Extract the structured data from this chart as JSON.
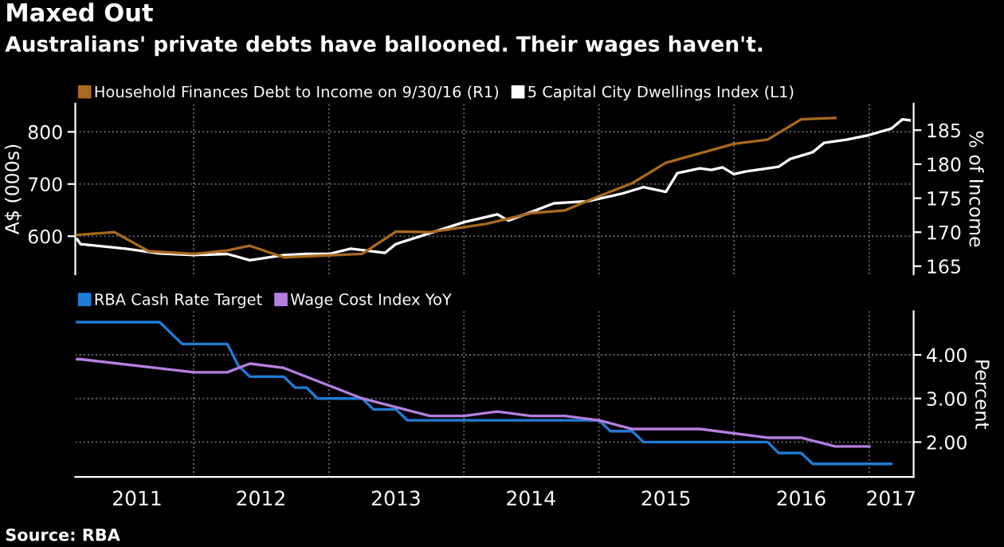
{
  "chart_data": [
    {
      "type": "line",
      "title": "Maxed Out",
      "subtitle": "Australians' private debts have ballooned. Their wages haven't.",
      "ylabel": "A$ (000s)",
      "y2label": "% of Income",
      "legend": "top left",
      "grid": true,
      "tick_labels": "y",
      "marker": "none",
      "line_style": "solid",
      "xlim": [
        "2011-02-15",
        "2017-05-01"
      ],
      "xticks": [
        {
          "value": "2012-01-01",
          "label": null
        },
        {
          "value": "2013-01-01",
          "label": null
        },
        {
          "value": "2014-01-01",
          "label": null
        },
        {
          "value": "2015-01-01",
          "label": null
        },
        {
          "value": "2016-01-01",
          "label": null
        },
        {
          "value": "2017-01-01",
          "label": null
        }
      ],
      "ylim": [
        527,
        854
      ],
      "yticks": [
        600,
        700,
        800
      ],
      "y2lim": [
        163.8,
        188.9
      ],
      "y2ticks": [
        165,
        170,
        175,
        180,
        185
      ],
      "series": [
        {
          "name": "Household Finances Debt to Income on 9/30/16 (R1)",
          "color": "#a86a1e",
          "axis": "y2",
          "x": [
            "2011-02-20",
            "2011-06",
            "2011-09",
            "2012-01",
            "2012-04",
            "2012-06",
            "2012-09",
            "2013-04",
            "2013-07",
            "2013-10",
            "2014-03",
            "2014-07",
            "2014-10",
            "2015-01",
            "2015-04",
            "2015-07",
            "2016-01",
            "2016-04",
            "2016-07",
            "2016-10"
          ],
          "values": [
            169.6,
            170.0,
            167.2,
            166.8,
            167.3,
            168.0,
            166.3,
            166.8,
            170.1,
            170.0,
            171.2,
            172.8,
            173.2,
            175.3,
            177.2,
            180.2,
            183.0,
            183.6,
            186.6,
            186.8
          ]
        },
        {
          "name": "5 Capital City Dwellings Index (L1)",
          "color": "#ffffff",
          "axis": "y",
          "x": [
            "2011-02-20",
            "2011-03",
            "2011-07",
            "2011-10",
            "2012-01",
            "2012-04",
            "2012-06",
            "2012-09",
            "2012-11",
            "2013-01",
            "2013-03",
            "2013-06",
            "2013-07",
            "2013-10",
            "2014-01",
            "2014-04",
            "2014-05",
            "2014-07",
            "2014-09",
            "2014-12",
            "2015-03",
            "2015-05",
            "2015-07",
            "2015-08",
            "2015-10",
            "2015-11",
            "2015-12",
            "2016-01",
            "2016-02",
            "2016-05",
            "2016-06",
            "2016-08",
            "2016-09",
            "2016-11",
            "2017-01",
            "2017-03",
            "2017-04",
            "2017-04-20"
          ],
          "values": [
            594,
            585,
            576,
            567,
            564,
            566,
            554,
            564,
            566,
            566,
            576,
            568,
            585,
            606,
            627,
            642,
            630,
            646,
            663,
            667,
            681,
            694,
            685,
            721,
            730,
            727,
            732,
            719,
            724,
            733,
            748,
            761,
            779,
            785,
            794,
            806,
            824,
            822
          ]
        }
      ]
    },
    {
      "type": "line",
      "y2label": "Percent",
      "legend": "top left",
      "grid": true,
      "marker": "none",
      "line_style": "solid",
      "annotations": [
        "Source: RBA"
      ],
      "xlim": [
        "2011-02-15",
        "2017-05-01"
      ],
      "xticks": [
        {
          "value": "2012-01-01",
          "label": null
        },
        {
          "value": "2013-01-01",
          "label": null
        },
        {
          "value": "2014-01-01",
          "label": null
        },
        {
          "value": "2015-01-01",
          "label": null
        },
        {
          "value": "2016-01-01",
          "label": null
        },
        {
          "value": "2017-01-01",
          "label": null
        },
        {
          "value": "2011-08-01",
          "label": "2011"
        },
        {
          "value": "2012-07-01",
          "label": "2012"
        },
        {
          "value": "2013-07-01",
          "label": "2013"
        },
        {
          "value": "2014-07-01",
          "label": "2014"
        },
        {
          "value": "2015-07-01",
          "label": "2015"
        },
        {
          "value": "2016-07-01",
          "label": "2016"
        },
        {
          "value": "2017-03-01",
          "label": "2017"
        }
      ],
      "y2lim": [
        1.2,
        5.0
      ],
      "y2ticks": [
        {
          "value": 2,
          "label": "2.00"
        },
        {
          "value": 3,
          "label": "3.00"
        },
        {
          "value": 4,
          "label": "4.00"
        }
      ],
      "series": [
        {
          "name": "RBA Cash Rate Target",
          "color": "#1f7bd6",
          "axis": "y2",
          "x": [
            "2011-02-20",
            "2011-10",
            "2011-12",
            "2012-04",
            "2012-05",
            "2012-06",
            "2012-09",
            "2012-10",
            "2012-11",
            "2012-12",
            "2013-04",
            "2013-05",
            "2013-07",
            "2013-08",
            "2015-01",
            "2015-02",
            "2015-04",
            "2015-05",
            "2016-04",
            "2016-05",
            "2016-07",
            "2016-08",
            "2017-03"
          ],
          "values": [
            4.75,
            4.75,
            4.25,
            4.25,
            3.75,
            3.5,
            3.5,
            3.25,
            3.25,
            3.0,
            3.0,
            2.75,
            2.75,
            2.5,
            2.5,
            2.25,
            2.25,
            2.0,
            2.0,
            1.75,
            1.75,
            1.5,
            1.5
          ]
        },
        {
          "name": "Wage Cost Index YoY",
          "color": "#b57fe0",
          "axis": "y2",
          "x": [
            "2011-02-20",
            "2011-03",
            "2012-01",
            "2012-04",
            "2012-06",
            "2012-09",
            "2013-04",
            "2013-07",
            "2013-10",
            "2014-01",
            "2014-04",
            "2014-07",
            "2014-10",
            "2015-01",
            "2015-04",
            "2015-10",
            "2016-04",
            "2016-07",
            "2016-10",
            "2017-01"
          ],
          "values": [
            3.9,
            3.9,
            3.6,
            3.6,
            3.8,
            3.7,
            3.0,
            2.8,
            2.6,
            2.6,
            2.7,
            2.6,
            2.6,
            2.5,
            2.3,
            2.3,
            2.1,
            2.1,
            1.9,
            1.9
          ]
        }
      ]
    }
  ]
}
